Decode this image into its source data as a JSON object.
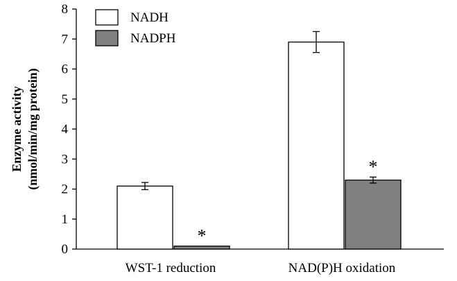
{
  "chart_data": {
    "type": "bar",
    "title": "",
    "xlabel": "",
    "ylabel_line1": "Enzyme activity",
    "ylabel_line2": "(nmol/min/mg protein)",
    "ylim": [
      0,
      8
    ],
    "yticks": [
      0,
      1,
      2,
      3,
      4,
      5,
      6,
      7,
      8
    ],
    "categories": [
      "WST-1 reduction",
      "NAD(P)H oxidation"
    ],
    "series": [
      {
        "name": "NADH",
        "color": "#ffffff",
        "values": [
          2.1,
          6.9
        ],
        "errors": [
          0.12,
          0.35
        ]
      },
      {
        "name": "NADPH",
        "color": "#808080",
        "values": [
          0.1,
          2.3
        ],
        "errors": [
          0,
          0.1
        ]
      }
    ],
    "annotations": [
      {
        "text": "*",
        "series": 1,
        "category": 0
      },
      {
        "text": "*",
        "series": 1,
        "category": 1
      }
    ],
    "legend_position": "top-left",
    "grid": false
  }
}
